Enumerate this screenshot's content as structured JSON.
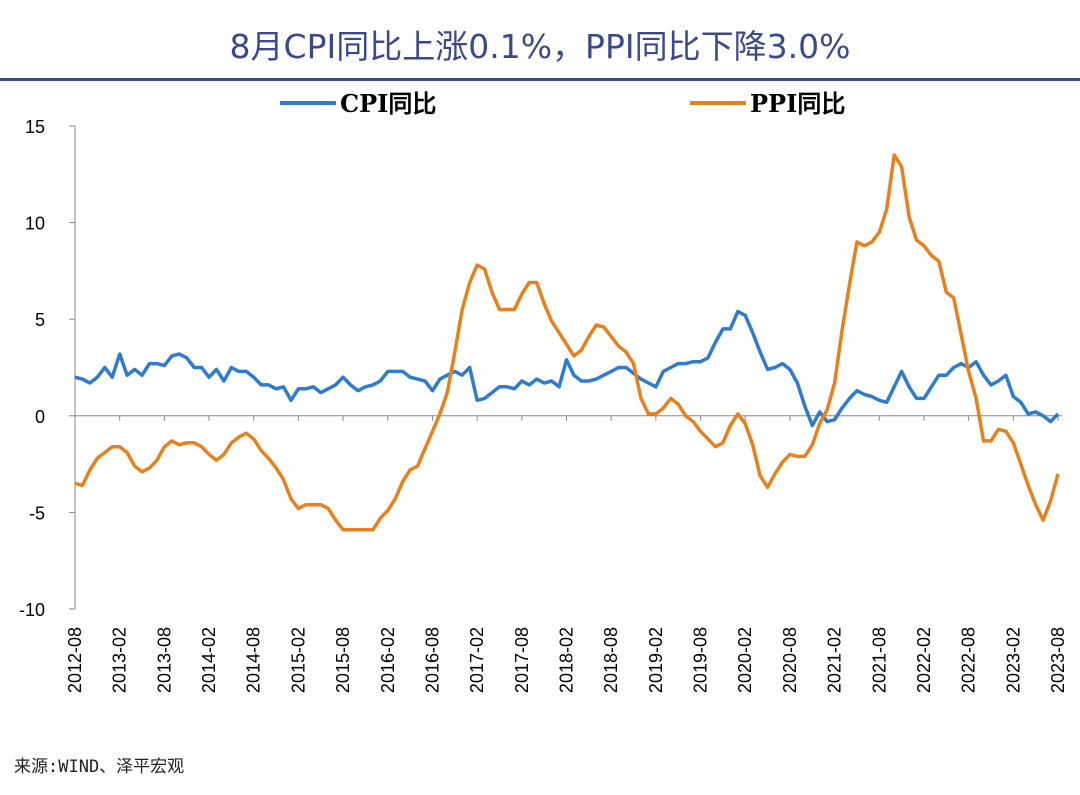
{
  "title": "8月CPI同比上涨0.1%，PPI同比下降3.0%",
  "source": "来源:WIND、泽平宏观",
  "chart_data": {
    "type": "line",
    "title": "8月CPI同比上涨0.1%，PPI同比下降3.0%",
    "xlabel": "",
    "ylabel": "",
    "ylim": [
      -10,
      15
    ],
    "yticks": [
      15,
      10,
      5,
      0,
      -5,
      -10
    ],
    "x_start": "2012-08",
    "x_end": "2023-08",
    "xticks": [
      "2012-08",
      "2013-02",
      "2013-08",
      "2014-02",
      "2014-08",
      "2015-02",
      "2015-08",
      "2016-02",
      "2016-08",
      "2017-02",
      "2017-08",
      "2018-02",
      "2018-08",
      "2019-02",
      "2019-08",
      "2020-02",
      "2020-08",
      "2021-02",
      "2021-08",
      "2022-02",
      "2022-08",
      "2023-02",
      "2023-08"
    ],
    "grid": false,
    "legend_placement": "top",
    "series": [
      {
        "name": "CPI同比",
        "color": "#2e7bcf",
        "values": [
          2.0,
          1.9,
          1.7,
          2.0,
          2.5,
          2.0,
          3.2,
          2.1,
          2.4,
          2.1,
          2.7,
          2.7,
          2.6,
          3.1,
          3.2,
          3.0,
          2.5,
          2.5,
          2.0,
          2.4,
          1.8,
          2.5,
          2.3,
          2.3,
          2.0,
          1.6,
          1.6,
          1.4,
          1.5,
          0.8,
          1.4,
          1.4,
          1.5,
          1.2,
          1.4,
          1.6,
          2.0,
          1.6,
          1.3,
          1.5,
          1.6,
          1.8,
          2.3,
          2.3,
          2.3,
          2.0,
          1.9,
          1.8,
          1.3,
          1.9,
          2.1,
          2.3,
          2.1,
          2.5,
          0.8,
          0.9,
          1.2,
          1.5,
          1.5,
          1.4,
          1.8,
          1.6,
          1.9,
          1.7,
          1.8,
          1.5,
          2.9,
          2.1,
          1.8,
          1.8,
          1.9,
          2.1,
          2.3,
          2.5,
          2.5,
          2.2,
          1.9,
          1.7,
          1.5,
          2.3,
          2.5,
          2.7,
          2.7,
          2.8,
          2.8,
          3.0,
          3.8,
          4.5,
          4.5,
          5.4,
          5.2,
          4.3,
          3.3,
          2.4,
          2.5,
          2.7,
          2.4,
          1.7,
          0.5,
          -0.5,
          0.2,
          -0.3,
          -0.2,
          0.4,
          0.9,
          1.3,
          1.1,
          1.0,
          0.8,
          0.7,
          1.5,
          2.3,
          1.5,
          0.9,
          0.9,
          1.5,
          2.1,
          2.1,
          2.5,
          2.7,
          2.5,
          2.8,
          2.1,
          1.6,
          1.8,
          2.1,
          1.0,
          0.7,
          0.1,
          0.2,
          0.0,
          -0.3,
          0.1
        ]
      },
      {
        "name": "PPI同比",
        "color": "#e8801c",
        "values": [
          -3.5,
          -3.6,
          -2.8,
          -2.2,
          -1.9,
          -1.6,
          -1.6,
          -1.9,
          -2.6,
          -2.9,
          -2.7,
          -2.3,
          -1.6,
          -1.3,
          -1.5,
          -1.4,
          -1.4,
          -1.6,
          -2.0,
          -2.3,
          -2.0,
          -1.4,
          -1.1,
          -0.9,
          -1.2,
          -1.8,
          -2.2,
          -2.7,
          -3.3,
          -4.3,
          -4.8,
          -4.6,
          -4.6,
          -4.6,
          -4.8,
          -5.4,
          -5.9,
          -5.9,
          -5.9,
          -5.9,
          -5.9,
          -5.3,
          -4.9,
          -4.3,
          -3.4,
          -2.8,
          -2.6,
          -1.7,
          -0.8,
          0.1,
          1.2,
          3.3,
          5.5,
          6.9,
          7.8,
          7.6,
          6.4,
          5.5,
          5.5,
          5.5,
          6.3,
          6.9,
          6.9,
          5.8,
          4.9,
          4.3,
          3.7,
          3.1,
          3.4,
          4.1,
          4.7,
          4.6,
          4.1,
          3.6,
          3.3,
          2.7,
          0.9,
          0.1,
          0.1,
          0.4,
          0.9,
          0.6,
          0.0,
          -0.3,
          -0.8,
          -1.2,
          -1.6,
          -1.4,
          -0.5,
          0.1,
          -0.4,
          -1.5,
          -3.1,
          -3.7,
          -3.0,
          -2.4,
          -2.0,
          -2.1,
          -2.1,
          -1.5,
          -0.4,
          0.3,
          1.7,
          4.4,
          6.8,
          9.0,
          8.8,
          9.0,
          9.5,
          10.7,
          13.5,
          12.9,
          10.3,
          9.1,
          8.8,
          8.3,
          8.0,
          6.4,
          6.1,
          4.2,
          2.3,
          0.9,
          -1.3,
          -1.3,
          -0.7,
          -0.8,
          -1.4,
          -2.5,
          -3.6,
          -4.6,
          -5.4,
          -4.4,
          -3.0
        ]
      }
    ]
  }
}
